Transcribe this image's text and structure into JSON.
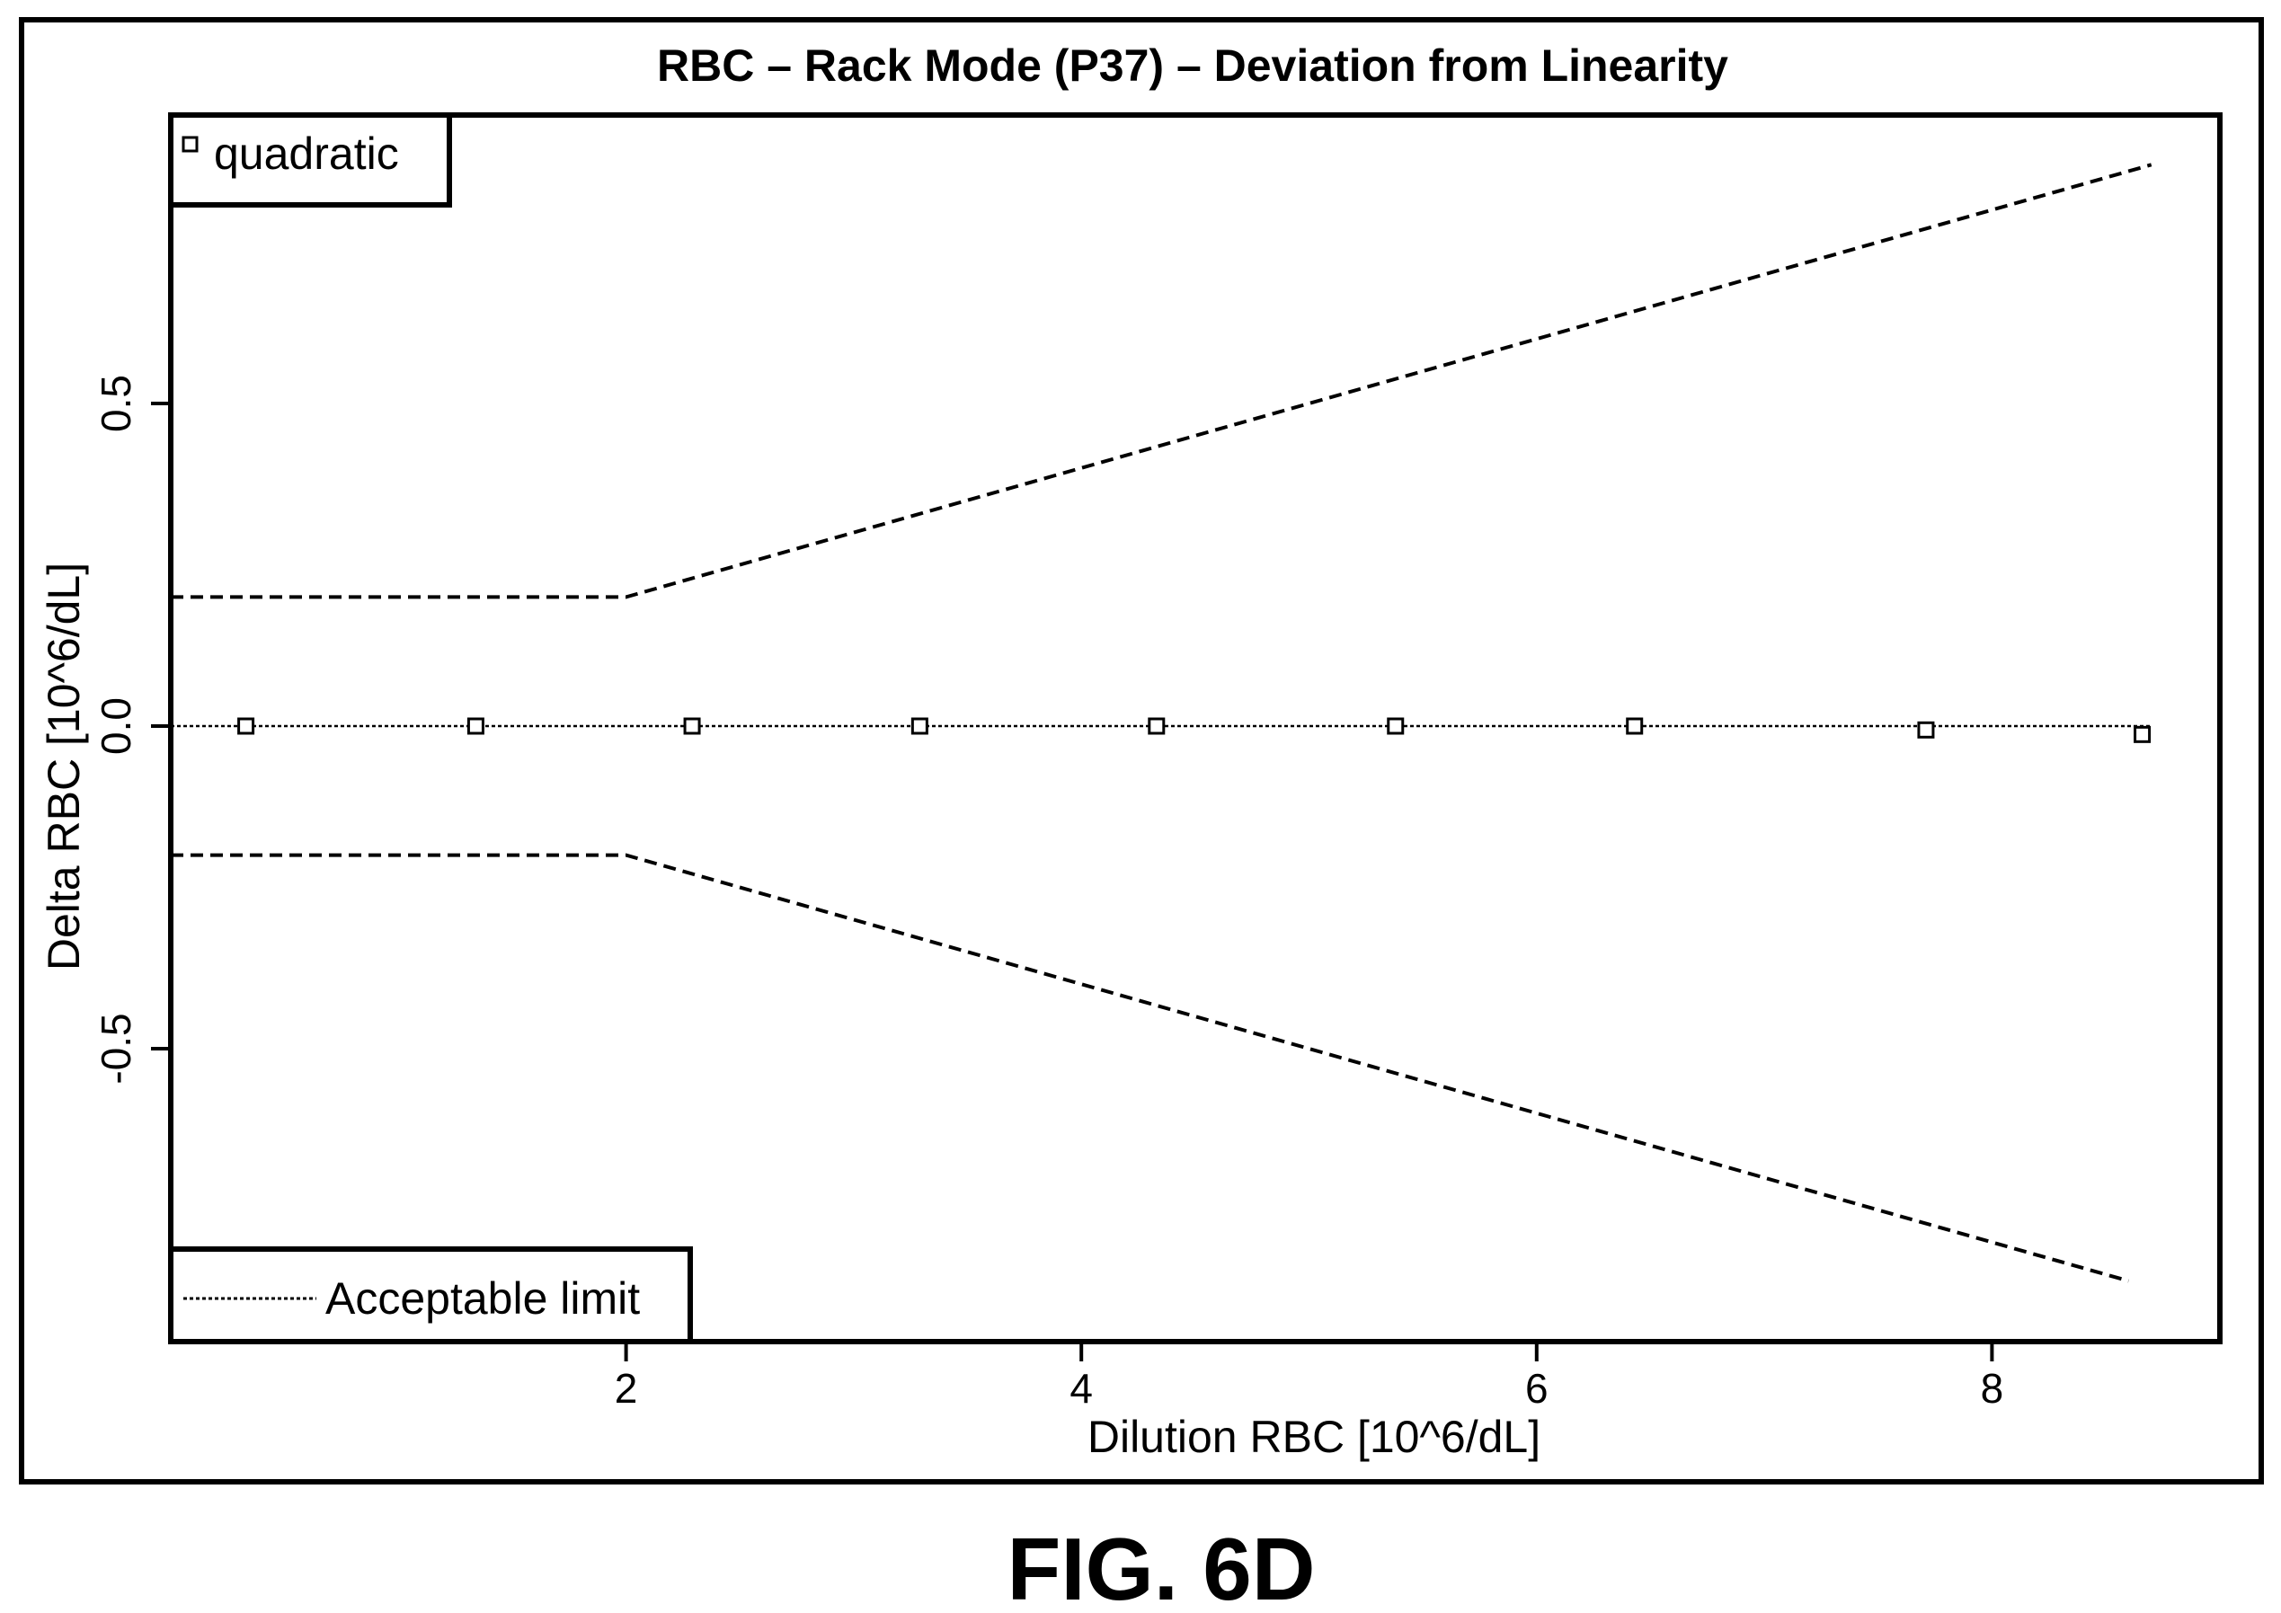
{
  "chart_data": {
    "type": "scatter",
    "title": "RBC – Rack Mode (P37) – Deviation from Linearity",
    "xlabel": "Dilution RBC [10^6/dL]",
    "ylabel": "Delta RBC [10^6/dL]",
    "xlim": [
      0.0,
      9.0
    ],
    "ylim": [
      -0.95,
      0.95
    ],
    "x_ticks": [
      2,
      4,
      6,
      8
    ],
    "x_tick_labels": [
      "2",
      "4",
      "6",
      "8"
    ],
    "y_ticks": [
      -0.5,
      0.0,
      0.5
    ],
    "y_tick_labels": [
      "-0.5",
      "0.0",
      "0.5"
    ],
    "grid": false,
    "series": [
      {
        "name": "quadratic",
        "marker": "open-square",
        "x": [
          0.33,
          1.34,
          2.29,
          3.29,
          4.33,
          5.38,
          6.43,
          7.71,
          8.66
        ],
        "y": [
          0.0,
          0.0,
          0.0,
          0.0,
          0.0,
          0.0,
          0.0,
          -0.006,
          -0.013
        ]
      },
      {
        "name": "Acceptable limit",
        "line_style": "dotted",
        "x": [
          0.0,
          8.7
        ],
        "y": [
          0.0,
          0.0
        ]
      }
    ],
    "limit_lines": [
      {
        "x": [
          0.0,
          2.0,
          8.7
        ],
        "y": [
          0.2,
          0.2,
          0.87
        ],
        "style": "dashed"
      },
      {
        "x": [
          0.0,
          2.0,
          8.6
        ],
        "y": [
          -0.2,
          -0.2,
          -0.86
        ],
        "style": "dashed"
      }
    ],
    "legends": [
      {
        "position": "top-left",
        "entries": [
          "quadratic"
        ]
      },
      {
        "position": "bottom-left",
        "entries": [
          "Acceptable limit"
        ]
      }
    ]
  },
  "caption": "FIG. 6D"
}
